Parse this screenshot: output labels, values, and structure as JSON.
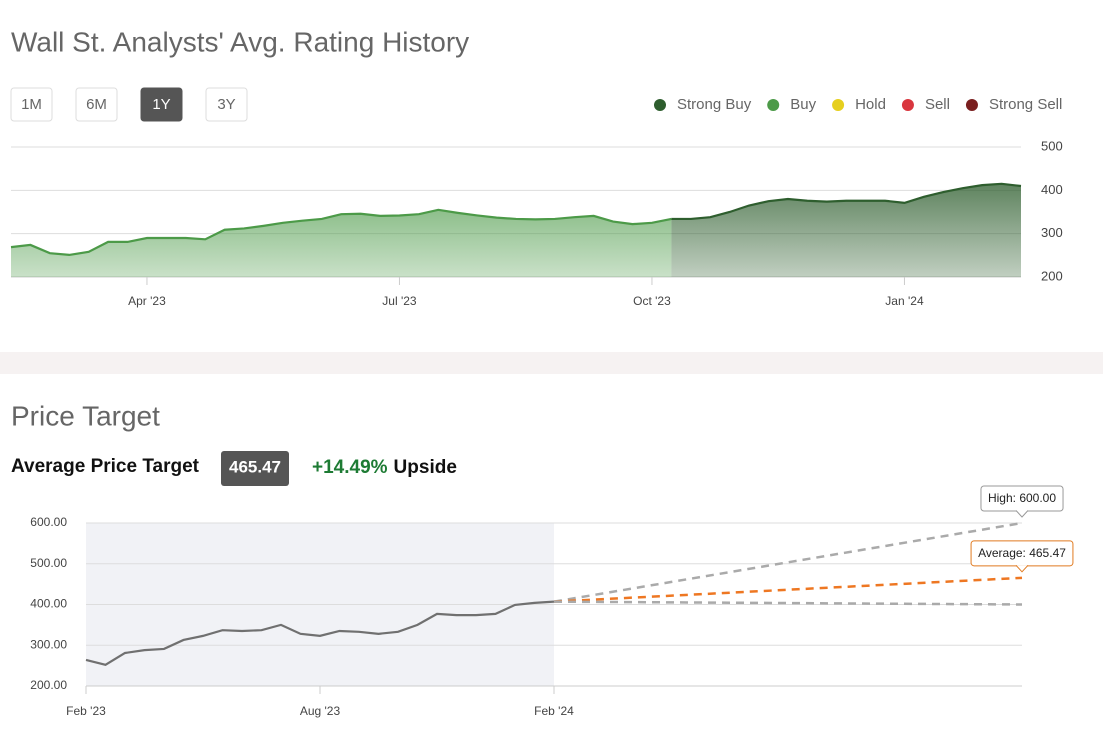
{
  "chart_data": [
    {
      "type": "area",
      "title": "Wall St. Analysts' Avg. Rating History",
      "range_buttons": [
        "1M",
        "6M",
        "1Y",
        "3Y"
      ],
      "active_range": "1Y",
      "categories": [
        null,
        null,
        null,
        null,
        null,
        null,
        null,
        "Apr '23",
        null,
        null,
        null,
        null,
        null,
        null,
        null,
        null,
        null,
        null,
        null,
        null,
        "Jul '23",
        null,
        null,
        null,
        null,
        null,
        null,
        null,
        null,
        null,
        null,
        null,
        null,
        "Oct '23",
        null,
        null,
        null,
        null,
        null,
        null,
        null,
        null,
        null,
        null,
        null,
        null,
        "Jan '24",
        null,
        null,
        null,
        null,
        null,
        null
      ],
      "series": [
        {
          "name": "Strong Buy",
          "color": "#2e5e2e",
          "values": [
            null,
            null,
            null,
            null,
            null,
            null,
            null,
            null,
            null,
            null,
            null,
            null,
            null,
            null,
            null,
            null,
            null,
            null,
            null,
            null,
            null,
            null,
            null,
            null,
            null,
            null,
            null,
            null,
            null,
            null,
            null,
            null,
            null,
            null,
            334,
            334,
            338,
            350,
            365,
            375,
            380,
            376,
            374,
            376,
            376,
            376,
            371,
            385,
            396,
            405,
            412,
            415,
            410
          ]
        },
        {
          "name": "Buy",
          "color": "#4c9a48",
          "values": [
            269,
            274,
            255,
            251,
            258,
            281,
            281,
            290,
            290,
            290,
            287,
            309,
            312,
            318,
            325,
            330,
            334,
            345,
            346,
            341,
            342,
            345,
            355,
            348,
            342,
            337,
            334,
            333,
            334,
            338,
            341,
            328,
            322,
            325,
            334,
            null,
            null,
            null,
            null,
            null,
            null,
            null,
            null,
            null,
            null,
            null,
            null,
            null,
            null,
            null,
            null,
            null,
            null
          ]
        },
        {
          "name": "Hold",
          "color": "#e6cf1e",
          "values": [
            null,
            null,
            null,
            null,
            null,
            null,
            null,
            null,
            null,
            null,
            null,
            null,
            null,
            null,
            null,
            null,
            null,
            null,
            null,
            null,
            null,
            null,
            null,
            null,
            null,
            null,
            null,
            null,
            null,
            null,
            null,
            null,
            null,
            null,
            null,
            null,
            null,
            null,
            null,
            null,
            null,
            null,
            null,
            null,
            null,
            null,
            null,
            null,
            null,
            null,
            null,
            null,
            null
          ]
        },
        {
          "name": "Sell",
          "color": "#d9363e",
          "values": [
            null,
            null,
            null,
            null,
            null,
            null,
            null,
            null,
            null,
            null,
            null,
            null,
            null,
            null,
            null,
            null,
            null,
            null,
            null,
            null,
            null,
            null,
            null,
            null,
            null,
            null,
            null,
            null,
            null,
            null,
            null,
            null,
            null,
            null,
            null,
            null,
            null,
            null,
            null,
            null,
            null,
            null,
            null,
            null,
            null,
            null,
            null,
            null,
            null,
            null,
            null,
            null,
            null
          ]
        },
        {
          "name": "Strong Sell",
          "color": "#7a1f1f",
          "values": [
            null,
            null,
            null,
            null,
            null,
            null,
            null,
            null,
            null,
            null,
            null,
            null,
            null,
            null,
            null,
            null,
            null,
            null,
            null,
            null,
            null,
            null,
            null,
            null,
            null,
            null,
            null,
            null,
            null,
            null,
            null,
            null,
            null,
            null,
            null,
            null,
            null,
            null,
            null,
            null,
            null,
            null,
            null,
            null,
            null,
            null,
            null,
            null,
            null,
            null,
            null,
            null,
            null
          ]
        }
      ],
      "ylim": [
        200,
        500
      ],
      "yticks": [
        200,
        300,
        400,
        500
      ],
      "grid": true,
      "legend": "top-right"
    },
    {
      "type": "line",
      "title": "Price Target",
      "summary": {
        "label": "Average Price Target",
        "badge": "465.47",
        "change": "+14.49%",
        "change_text": "Upside"
      },
      "categories": [
        "Feb '23",
        null,
        null,
        null,
        null,
        null,
        null,
        null,
        null,
        null,
        null,
        null,
        "Aug '23",
        null,
        null,
        null,
        null,
        null,
        null,
        null,
        null,
        null,
        null,
        null,
        "Feb '24",
        null,
        null,
        null,
        null,
        null,
        null,
        null,
        null,
        null,
        null,
        null,
        null,
        null,
        null,
        null,
        null,
        null,
        null,
        null,
        null,
        null,
        null,
        null,
        null
      ],
      "series": [
        {
          "name": "Price",
          "color": "#707070",
          "values": [
            264,
            252,
            281,
            288,
            291,
            313,
            323,
            337,
            335,
            337,
            350,
            328,
            323,
            335,
            333,
            328,
            333,
            350,
            377,
            374,
            374,
            377,
            399,
            404,
            407,
            null,
            null,
            null,
            null,
            null,
            null,
            null,
            null,
            null,
            null,
            null,
            null,
            null,
            null,
            null,
            null,
            null,
            null,
            null,
            null,
            null,
            null,
            null,
            null
          ]
        }
      ],
      "targets": [
        {
          "label": "High: 600.00",
          "value": 600,
          "color": "#aaaaaa",
          "border": "#999999"
        },
        {
          "label": "Average: 465.47",
          "value": 465.47,
          "color": "#ee7722",
          "border": "#e07a20"
        },
        {
          "value": 400,
          "color": "#aaaaaa"
        }
      ],
      "ylim": [
        200,
        600
      ],
      "yticks": [
        {
          "value": 200,
          "label": "200.00"
        },
        {
          "value": 300,
          "label": "300.00"
        },
        {
          "value": 400,
          "label": "400.00"
        },
        {
          "value": 500,
          "label": "500.00"
        },
        {
          "value": 600,
          "label": "600.00"
        }
      ],
      "grid": true,
      "shade_history": true
    }
  ]
}
